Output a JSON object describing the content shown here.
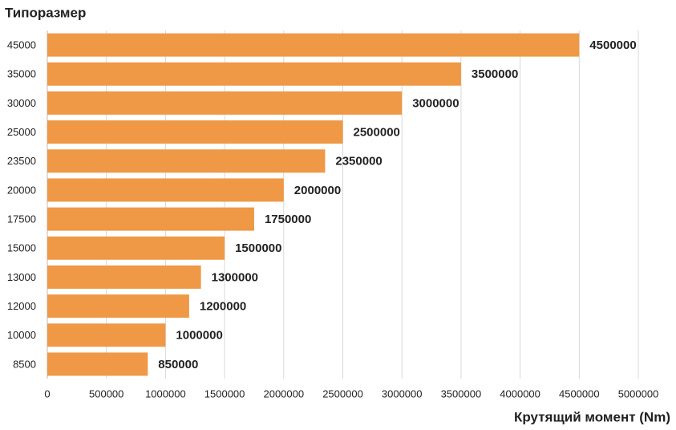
{
  "chart_data": {
    "type": "hbar",
    "y_title": "Типоразмер",
    "x_title": "Крутящий момент (Nm)",
    "categories": [
      "45000",
      "35000",
      "30000",
      "25000",
      "23500",
      "20000",
      "17500",
      "15000",
      "13000",
      "12000",
      "10000",
      "8500"
    ],
    "values": [
      4500000,
      3500000,
      3000000,
      2500000,
      2350000,
      2000000,
      1750000,
      1500000,
      1300000,
      1200000,
      1000000,
      850000
    ],
    "color": "#ef9846",
    "xlim": [
      0,
      5000000
    ],
    "xticks": [
      0,
      500000,
      1000000,
      1500000,
      2000000,
      2500000,
      3000000,
      3500000,
      4000000,
      4500000,
      5000000
    ],
    "grid": true
  }
}
